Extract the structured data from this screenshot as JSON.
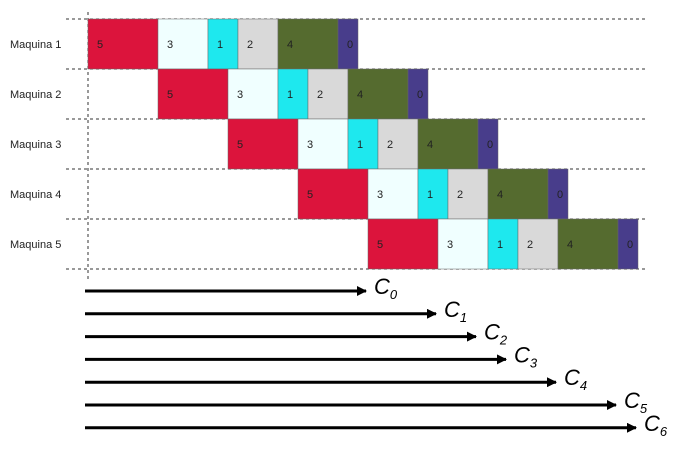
{
  "chart_data": {
    "type": "gantt",
    "machines": [
      "Maquina 1",
      "Maquina 2",
      "Maquina 3",
      "Maquina 4",
      "Maquina 5"
    ],
    "jobs": [
      {
        "label": "5",
        "duration": 7,
        "color": "#dc143c"
      },
      {
        "label": "3",
        "duration": 5,
        "color": "#f0ffff"
      },
      {
        "label": "1",
        "duration": 3,
        "color": "#1ee8ee"
      },
      {
        "label": "2",
        "duration": 4,
        "color": "#d9d9d9"
      },
      {
        "label": "4",
        "duration": 6,
        "color": "#556b2f"
      },
      {
        "label": "0",
        "duration": 2,
        "color": "#483d8b"
      }
    ],
    "completions": [
      {
        "label": "C",
        "sub": "0",
        "time": 28
      },
      {
        "label": "C",
        "sub": "1",
        "time": 35
      },
      {
        "label": "C",
        "sub": "2",
        "time": 39
      },
      {
        "label": "C",
        "sub": "3",
        "time": 42
      },
      {
        "label": "C",
        "sub": "4",
        "time": 47
      },
      {
        "label": "C",
        "sub": "5",
        "time": 53
      },
      {
        "label": "C",
        "sub": "6",
        "time": 55
      }
    ]
  }
}
